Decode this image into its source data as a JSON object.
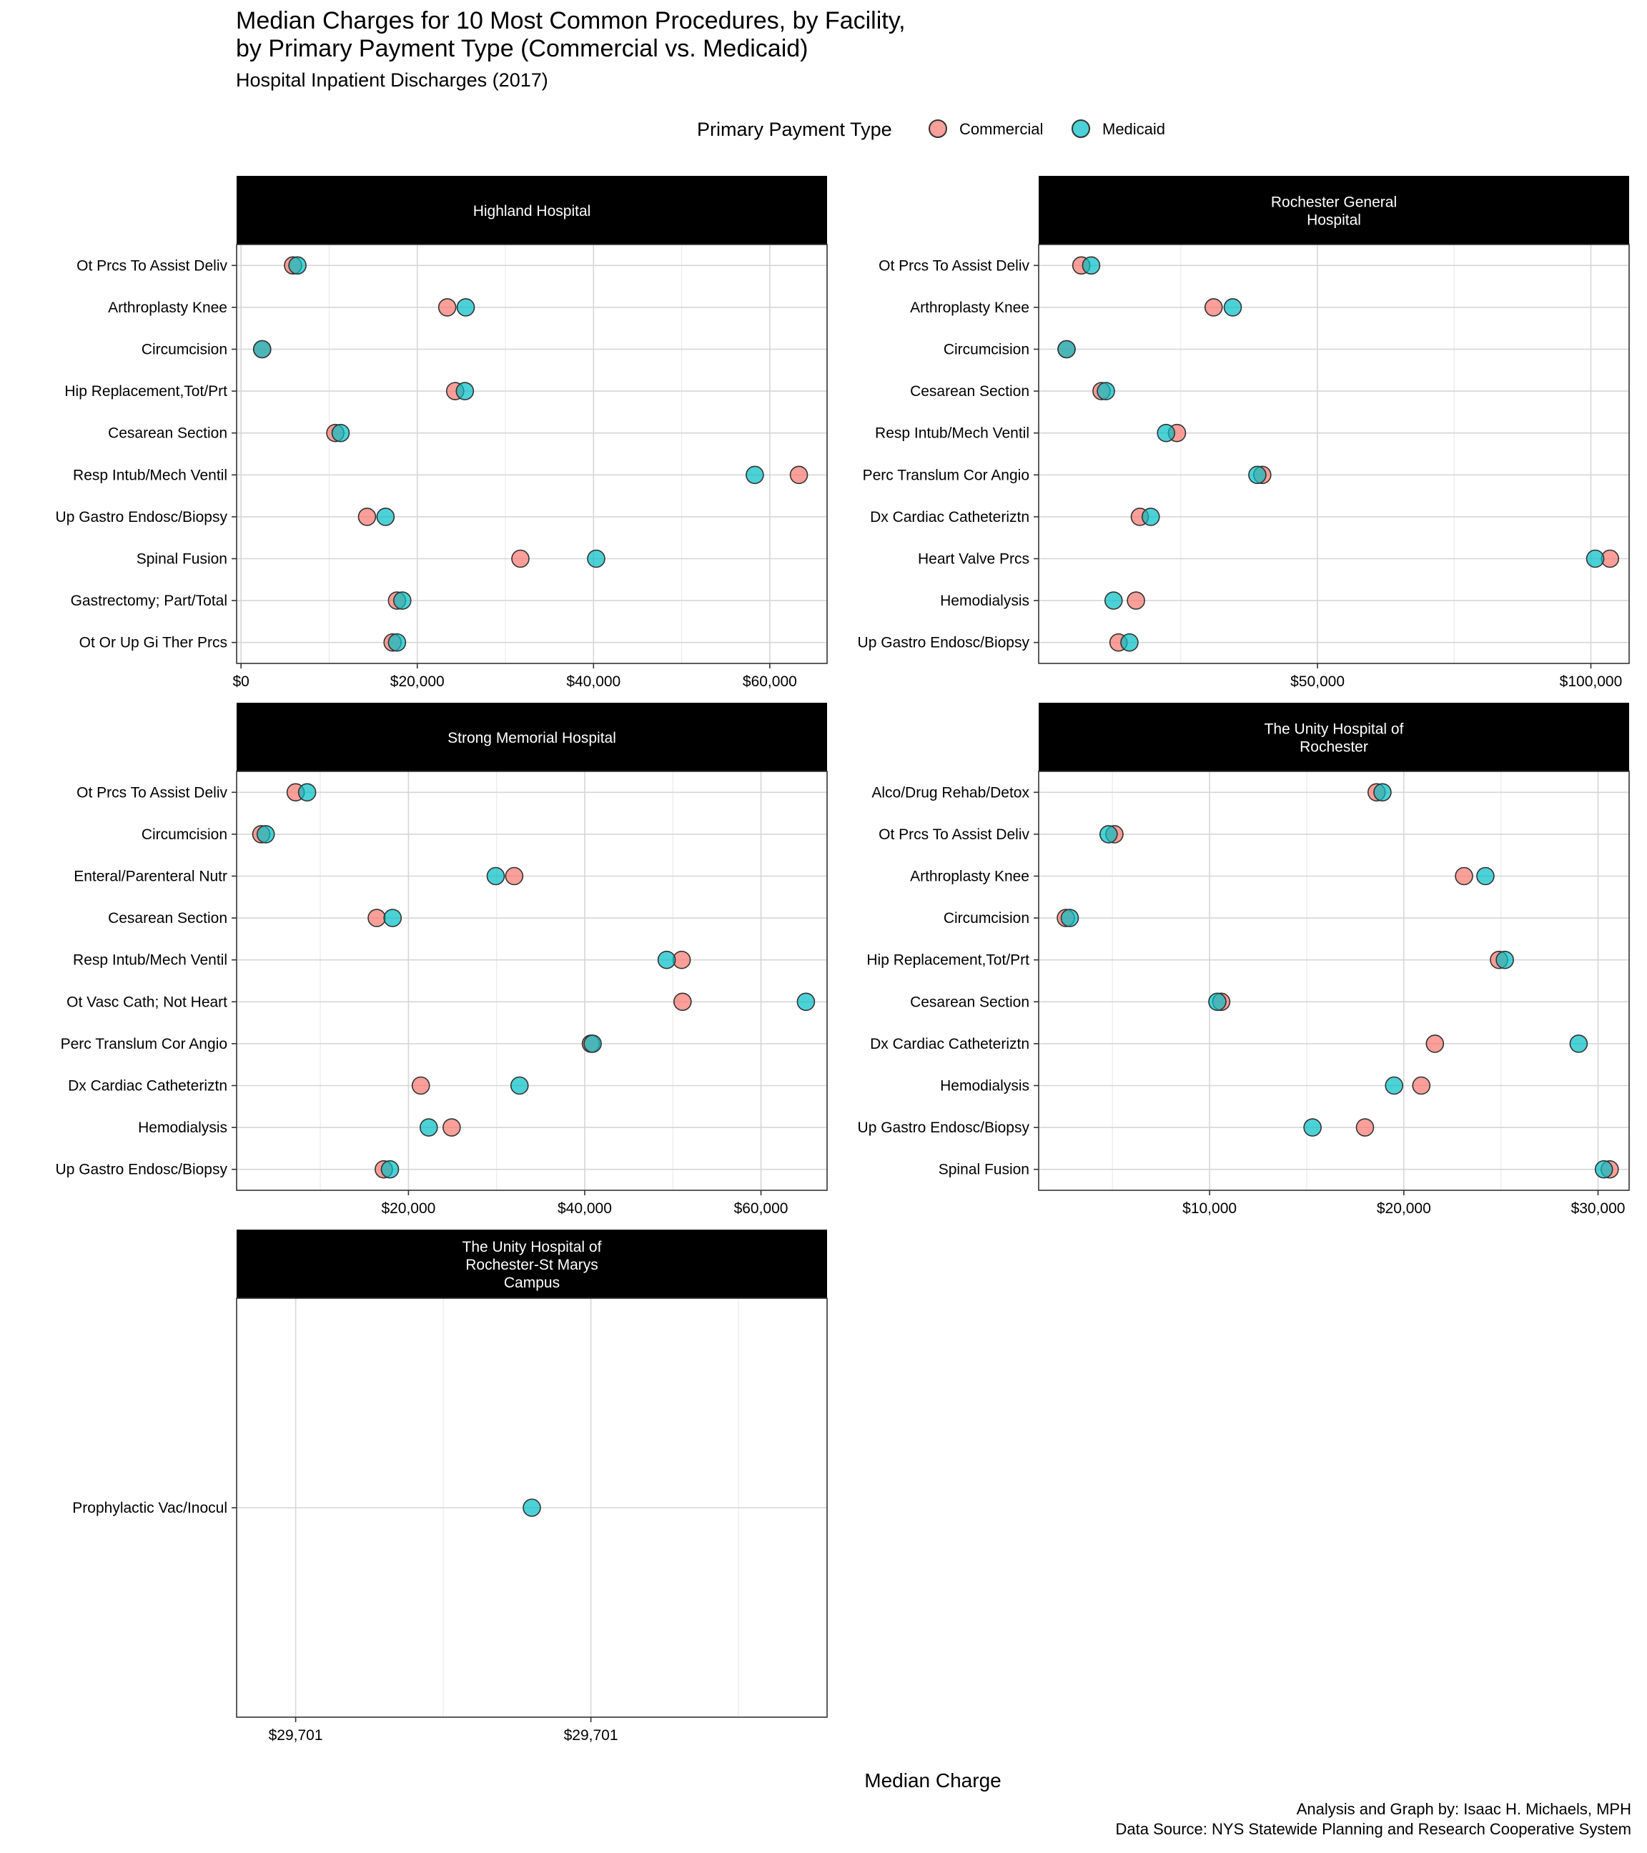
{
  "title_line1": "Median Charges for 10 Most Common Procedures, by Facility,",
  "title_line2": "by Primary Payment Type (Commercial vs. Medicaid)",
  "subtitle": "Hospital Inpatient Discharges (2017)",
  "xlabel": "Median Charge",
  "caption_line1": "Analysis and Graph by: Isaac H. Michaels, MPH",
  "caption_line2": "Data Source: NYS Statewide Planning and Research Cooperative System",
  "legend": {
    "title": "Primary Payment Type",
    "items": [
      {
        "label": "Commercial",
        "color": "#F8766D"
      },
      {
        "label": "Medicaid",
        "color": "#00BFC4"
      }
    ]
  },
  "chart_data": {
    "type": "scatter",
    "panels": [
      {
        "facility_lines": [
          "Highland Hospital"
        ],
        "xlim": [
          -500,
          66500
        ],
        "ticks": [
          0,
          20000,
          40000,
          60000
        ],
        "tick_labels": [
          "$0",
          "$20,000",
          "$40,000",
          "$60,000"
        ],
        "categories": [
          "Ot Prcs To Assist Deliv",
          "Arthroplasty Knee",
          "Circumcision",
          "Hip Replacement,Tot/Prt",
          "Cesarean Section",
          "Resp Intub/Mech Ventil",
          "Up Gastro Endosc/Biopsy",
          "Spinal Fusion",
          "Gastrectomy; Part/Total",
          "Ot Or Up Gi Ther Prcs"
        ],
        "series": [
          {
            "name": "Commercial",
            "values": [
              5900,
              23400,
              2400,
              24300,
              10700,
              63300,
              14300,
              31700,
              17700,
              17200
            ]
          },
          {
            "name": "Medicaid",
            "values": [
              6400,
              25500,
              2400,
              25400,
              11300,
              58300,
              16400,
              40300,
              18300,
              17700
            ]
          }
        ]
      },
      {
        "facility_lines": [
          "Rochester General",
          "Hospital"
        ],
        "xlim": [
          -1000,
          107000
        ],
        "ticks": [
          50000,
          100000
        ],
        "tick_labels": [
          "$50,000",
          "$100,000"
        ],
        "categories": [
          "Ot Prcs To Assist Deliv",
          "Arthroplasty Knee",
          "Circumcision",
          "Cesarean Section",
          "Resp Intub/Mech Ventil",
          "Perc Translum Cor Angio",
          "Dx Cardiac Catheteriztn",
          "Heart Valve Prcs",
          "Hemodialysis",
          "Up Gastro Endosc/Biopsy"
        ],
        "series": [
          {
            "name": "Commercial",
            "values": [
              6800,
              31000,
              4100,
              10500,
              24300,
              39900,
              17500,
              103500,
              16800,
              13600
            ]
          },
          {
            "name": "Medicaid",
            "values": [
              8600,
              34500,
              4100,
              11300,
              22300,
              39000,
              19500,
              100800,
              12700,
              15600
            ]
          }
        ]
      },
      {
        "facility_lines": [
          "Strong Memorial Hospital"
        ],
        "xlim": [
          500,
          67500
        ],
        "ticks": [
          20000,
          40000,
          60000
        ],
        "tick_labels": [
          "$20,000",
          "$40,000",
          "$60,000"
        ],
        "categories": [
          "Ot Prcs To Assist Deliv",
          "Circumcision",
          "Enteral/Parenteral Nutr",
          "Cesarean Section",
          "Resp Intub/Mech Ventil",
          "Ot Vasc Cath; Not Heart",
          "Perc Translum Cor Angio",
          "Dx Cardiac Catheteriztn",
          "Hemodialysis",
          "Up Gastro Endosc/Biopsy"
        ],
        "series": [
          {
            "name": "Commercial",
            "values": [
              7200,
              3300,
              32000,
              16400,
              51000,
              51100,
              40700,
              21400,
              24900,
              17200
            ]
          },
          {
            "name": "Medicaid",
            "values": [
              8500,
              3800,
              29900,
              18200,
              49300,
              65100,
              40900,
              32600,
              22300,
              17900
            ]
          }
        ]
      },
      {
        "facility_lines": [
          "The Unity Hospital of",
          "Rochester"
        ],
        "xlim": [
          1200,
          31600
        ],
        "ticks": [
          10000,
          20000,
          30000
        ],
        "tick_labels": [
          "$10,000",
          "$20,000",
          "$30,000"
        ],
        "categories": [
          "Alco/Drug Rehab/Detox",
          "Ot Prcs To Assist Deliv",
          "Arthroplasty Knee",
          "Circumcision",
          "Hip Replacement,Tot/Prt",
          "Cesarean Section",
          "Dx Cardiac Catheteriztn",
          "Hemodialysis",
          "Up Gastro Endosc/Biopsy",
          "Spinal Fusion"
        ],
        "series": [
          {
            "name": "Commercial",
            "values": [
              18600,
              5100,
              23100,
              2600,
              24900,
              10600,
              21600,
              20900,
              18000,
              30600
            ]
          },
          {
            "name": "Medicaid",
            "values": [
              18900,
              4800,
              24200,
              2800,
              25200,
              10400,
              29000,
              19500,
              15300,
              30300
            ]
          }
        ]
      },
      {
        "facility_lines": [
          "The Unity Hospital of",
          "Rochester-St Marys",
          "Campus"
        ],
        "xlim": [
          0,
          1
        ],
        "ticks": [
          0.1,
          0.6
        ],
        "tick_labels": [
          "$29,701",
          "$29,701"
        ],
        "minor_ticks": [
          0.35,
          0.85
        ],
        "categories": [
          "Prophylactic Vac/Inocul"
        ],
        "series": [
          {
            "name": "Commercial",
            "values": [
              null
            ]
          },
          {
            "name": "Medicaid",
            "values": [
              0.5
            ]
          }
        ]
      }
    ]
  }
}
